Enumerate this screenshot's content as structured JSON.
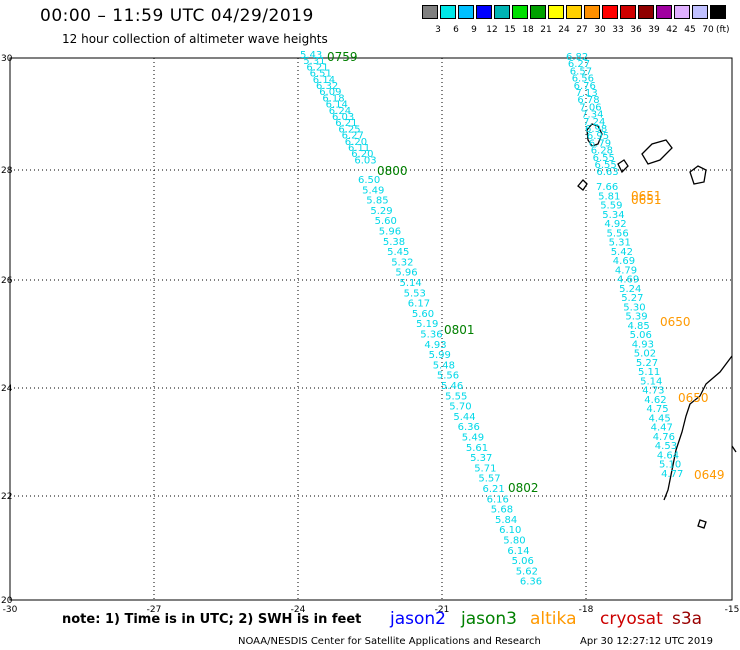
{
  "header": {
    "title": "00:00 – 11:59 UTC 04/29/2019",
    "subtitle": "12 hour collection of altimeter wave heights"
  },
  "colorbar": {
    "colors": [
      "#808080",
      "#00e8e8",
      "#00c0ff",
      "#0000ff",
      "#00b4b4",
      "#00e000",
      "#00a000",
      "#ffff00",
      "#ffd000",
      "#ff9000",
      "#ff0000",
      "#d00000",
      "#900000",
      "#a000a0",
      "#e0b0ff",
      "#c0c0ff",
      "#000000"
    ],
    "labels": [
      "3",
      "6",
      "9",
      "12",
      "15",
      "18",
      "21",
      "24",
      "27",
      "30",
      "33",
      "36",
      "39",
      "42",
      "45",
      "70"
    ],
    "unit": "(ft)"
  },
  "axes": {
    "x_ticks": [
      "-30",
      "-27",
      "-24",
      "-21",
      "-18",
      "-15"
    ],
    "y_ticks": [
      "30",
      "28",
      "26",
      "24",
      "22",
      "20"
    ]
  },
  "track_a": {
    "color": "#00d8e8",
    "values": [
      "5.43",
      "5.31",
      "6.21",
      "6.51",
      "6.14",
      "6.32",
      "6.09",
      "6.18",
      "6.14",
      "6.24",
      "6.03",
      "6.21",
      "6.25",
      "6.27",
      "6.20",
      "6.11",
      "6.20",
      "6.03",
      "6.50",
      "5.49",
      "5.85",
      "5.29",
      "5.60",
      "5.96",
      "5.38",
      "5.45",
      "5.32",
      "5.96",
      "5.14",
      "5.53",
      "6.17",
      "5.60",
      "5.19",
      "5.36",
      "4.93",
      "5.99",
      "5.48",
      "5.56",
      "5.46",
      "5.55",
      "5.70",
      "5.44",
      "6.36",
      "5.49",
      "5.61",
      "5.37",
      "5.71",
      "5.57",
      "6.21",
      "6.16",
      "5.68",
      "5.84",
      "6.10",
      "5.80",
      "6.14",
      "5.06",
      "5.62",
      "6.36"
    ]
  },
  "track_b": {
    "color": "#00d8e8",
    "values": [
      "6.82",
      "6.27",
      "6.57",
      "6.56",
      "6.76",
      "7.13",
      "6.78",
      "7.06",
      "7.34",
      "7.24",
      "6.98",
      "6.95",
      "6.79",
      "6.28",
      "6.55",
      "6.55",
      "6.63",
      "7.66",
      "5.81",
      "5.59",
      "5.34",
      "4.92",
      "5.56",
      "5.31",
      "5.42",
      "4.69",
      "4.79",
      "4.69",
      "5.24",
      "5.27",
      "5.30",
      "5.39",
      "4.85",
      "5.06",
      "4.93",
      "5.02",
      "5.27",
      "5.11",
      "5.14",
      "4.73",
      "4.62",
      "4.75",
      "4.45",
      "4.47",
      "4.76",
      "4.53",
      "4.64",
      "5.10",
      "4.77"
    ]
  },
  "time_labels": [
    {
      "text": "0759",
      "color": "#008000"
    },
    {
      "text": "0800",
      "color": "#008000"
    },
    {
      "text": "0801",
      "color": "#008000"
    },
    {
      "text": "0802",
      "color": "#008000"
    },
    {
      "text": "0651",
      "color": "#ff9900"
    },
    {
      "text": "0651",
      "color": "#ff9900"
    },
    {
      "text": "0650",
      "color": "#ff9900"
    },
    {
      "text": "0650",
      "color": "#ff9900"
    },
    {
      "text": "0649",
      "color": "#ff9900"
    }
  ],
  "footer": {
    "note": "note: 1) Time is in UTC; 2) SWH is in feet",
    "legend": [
      {
        "label": "jason2",
        "color": "#0000ff"
      },
      {
        "label": "jason3",
        "color": "#008000"
      },
      {
        "label": "altika",
        "color": "#ff9900"
      },
      {
        "label": "cryosat",
        "color": "#cc0000"
      },
      {
        "label": "s3a",
        "color": "#990000"
      }
    ],
    "credit": "NOAA/NESDIS Center for Satellite Applications and Research",
    "timestamp": "Apr 30 12:27:12 UTC 2019"
  }
}
